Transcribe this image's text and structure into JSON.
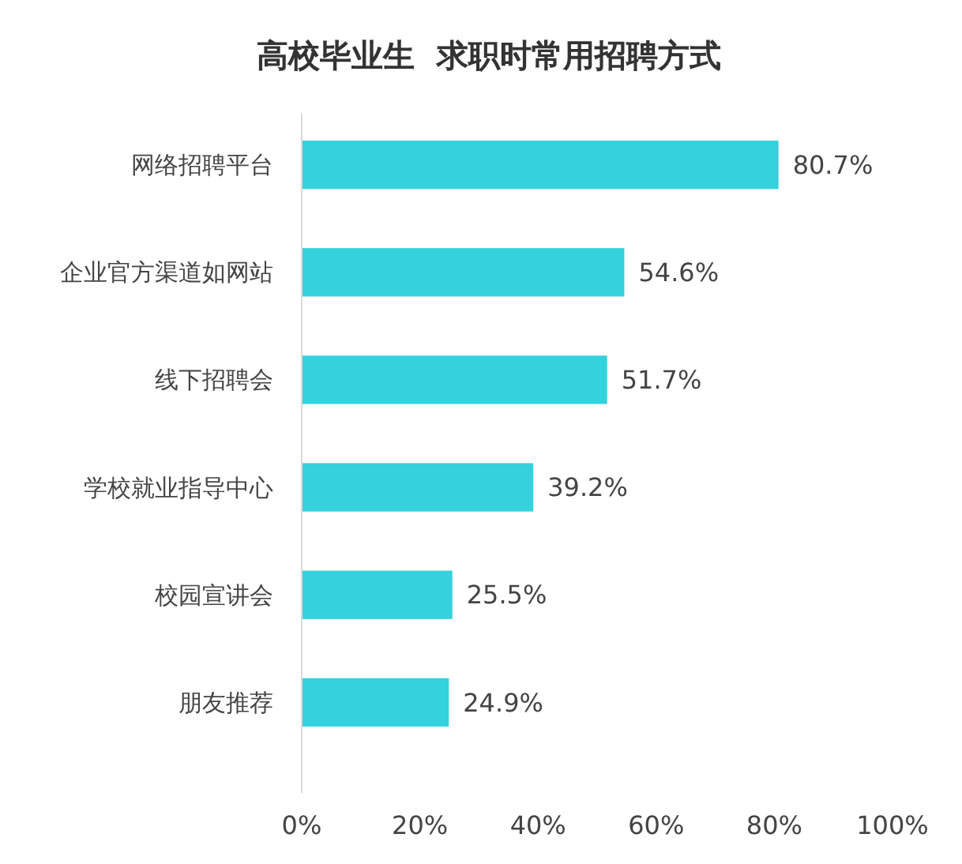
{
  "chart_data": {
    "type": "bar",
    "orientation": "horizontal",
    "title": "高校毕业生  求职时常用招聘方式",
    "categories": [
      "网络招聘平台",
      "企业官方渠道如网站",
      "线下招聘会",
      "学校就业指导中心",
      "校园宣讲会",
      "朋友推荐"
    ],
    "values": [
      80.7,
      54.6,
      51.7,
      39.2,
      25.5,
      24.9
    ],
    "value_labels": [
      "80.7%",
      "54.6%",
      "51.7%",
      "39.2%",
      "25.5%",
      "24.9%"
    ],
    "color": "#33d2dc",
    "xlim": [
      0,
      100
    ],
    "xticks": [
      {
        "value": 0,
        "label": "0%"
      },
      {
        "value": 20,
        "label": "20%"
      },
      {
        "value": 40,
        "label": "40%"
      },
      {
        "value": 60,
        "label": "60%"
      },
      {
        "value": 80,
        "label": "80%"
      },
      {
        "value": 100,
        "label": "100%"
      }
    ],
    "grid": false
  }
}
